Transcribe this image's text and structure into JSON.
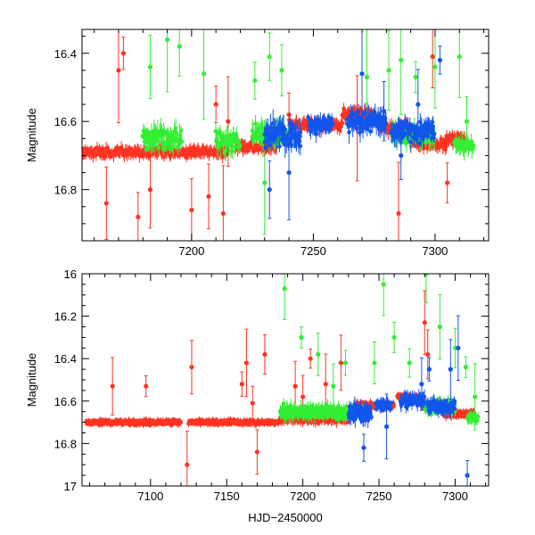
{
  "chart_data": [
    {
      "type": "scatter",
      "panel": "top",
      "xlabel": "",
      "ylabel": "Magnitude",
      "xlim": [
        7155,
        7322
      ],
      "ylim": [
        16.95,
        16.33
      ],
      "xticks": [
        7200,
        7250,
        7300
      ],
      "yticks": [
        16.4,
        16.6,
        16.8
      ],
      "series": [
        {
          "name": "red",
          "color": "#ff3322",
          "segments": [
            [
              7155,
              7215,
              16.69,
              0.018
            ],
            [
              7218,
              7235,
              16.675,
              0.02
            ],
            [
              7240,
              7262,
              16.61,
              0.018
            ],
            [
              7262,
              7275,
              16.575,
              0.02
            ],
            [
              7277,
              7290,
              16.62,
              0.02
            ],
            [
              7290,
              7305,
              16.665,
              0.02
            ],
            [
              7305,
              7312,
              16.65,
              0.02
            ]
          ],
          "outliers": [
            [
              7170,
              16.45
            ],
            [
              7172,
              16.4
            ],
            [
              7165,
              16.84
            ],
            [
              7178,
              16.88
            ],
            [
              7183,
              16.8
            ],
            [
              7200,
              16.86
            ],
            [
              7207,
              16.82
            ],
            [
              7210,
              16.55
            ],
            [
              7213,
              16.87
            ],
            [
              7215,
              16.6
            ],
            [
              7240,
              16.58
            ],
            [
              7268,
              16.62
            ],
            [
              7299,
              16.41
            ],
            [
              7305,
              16.78
            ],
            [
              7285,
              16.87
            ]
          ]
        },
        {
          "name": "green",
          "color": "#33ee33",
          "segments": [
            [
              7180,
              7196,
              16.65,
              0.04
            ],
            [
              7210,
              7220,
              16.66,
              0.04
            ],
            [
              7225,
              7240,
              16.64,
              0.04
            ],
            [
              7282,
              7300,
              16.64,
              0.04
            ],
            [
              7308,
              7316,
              16.67,
              0.03
            ]
          ],
          "outliers": [
            [
              7183,
              16.44
            ],
            [
              7190,
              16.36
            ],
            [
              7195,
              16.38
            ],
            [
              7205,
              16.46
            ],
            [
              7226,
              16.48
            ],
            [
              7230,
              16.78
            ],
            [
              7232,
              16.41
            ],
            [
              7272,
              16.47
            ],
            [
              7281,
              16.45
            ],
            [
              7286,
              16.42
            ],
            [
              7292,
              16.47
            ],
            [
              7300,
              16.44
            ],
            [
              7310,
              16.41
            ],
            [
              7313,
              16.6
            ],
            [
              7237,
              16.45
            ]
          ]
        },
        {
          "name": "blue",
          "color": "#1155ee",
          "segments": [
            [
              7230,
              7245,
              16.64,
              0.05
            ],
            [
              7248,
              7258,
              16.61,
              0.03
            ],
            [
              7264,
              7280,
              16.6,
              0.04
            ],
            [
              7282,
              7300,
              16.63,
              0.04
            ]
          ],
          "outliers": [
            [
              7232,
              16.8
            ],
            [
              7240,
              16.75
            ],
            [
              7270,
              16.46
            ],
            [
              7279,
              16.57
            ],
            [
              7286,
              16.7
            ],
            [
              7293,
              16.55
            ],
            [
              7302,
              16.42
            ]
          ]
        }
      ]
    },
    {
      "type": "scatter",
      "panel": "bottom",
      "xlabel": "HJD−2450000",
      "ylabel": "Magnitude",
      "xlim": [
        7055,
        7322
      ],
      "ylim": [
        17.0,
        16.0
      ],
      "xticks": [
        7100,
        7150,
        7200,
        7250,
        7300
      ],
      "yticks": [
        16.0,
        16.2,
        16.4,
        16.6,
        16.8,
        17.0
      ],
      "ytick_labels": [
        "16",
        "16.2",
        "16.4",
        "16.6",
        "16.8",
        "17"
      ],
      "series": [
        {
          "name": "red",
          "color": "#ff3322",
          "segments": [
            [
              7058,
              7120,
              16.7,
              0.015
            ],
            [
              7125,
              7185,
              16.7,
              0.015
            ],
            [
              7185,
              7230,
              16.685,
              0.025
            ],
            [
              7235,
              7260,
              16.62,
              0.02
            ],
            [
              7262,
              7276,
              16.58,
              0.015
            ],
            [
              7278,
              7292,
              16.62,
              0.02
            ],
            [
              7292,
              7313,
              16.66,
              0.02
            ]
          ],
          "outliers": [
            [
              7075,
              16.53
            ],
            [
              7097,
              16.53
            ],
            [
              7124,
              16.9
            ],
            [
              7127,
              16.44
            ],
            [
              7160,
              16.52
            ],
            [
              7163,
              16.42
            ],
            [
              7167,
              16.61
            ],
            [
              7175,
              16.38
            ],
            [
              7195,
              16.53
            ],
            [
              7205,
              16.4
            ],
            [
              7215,
              16.52
            ],
            [
              7225,
              16.42
            ],
            [
              7280,
              16.23
            ],
            [
              7282,
              16.38
            ],
            [
              7170,
              16.84
            ],
            [
              7200,
              16.58
            ]
          ]
        },
        {
          "name": "green",
          "color": "#33ee33",
          "segments": [
            [
              7185,
              7240,
              16.65,
              0.04
            ],
            [
              7280,
              7300,
              16.63,
              0.04
            ],
            [
              7308,
              7315,
              16.68,
              0.03
            ]
          ],
          "outliers": [
            [
              7188,
              16.07
            ],
            [
              7199,
              16.3
            ],
            [
              7210,
              16.38
            ],
            [
              7220,
              16.53
            ],
            [
              7228,
              16.42
            ],
            [
              7247,
              16.42
            ],
            [
              7253,
              16.05
            ],
            [
              7260,
              16.3
            ],
            [
              7270,
              16.42
            ],
            [
              7281,
              16.0
            ],
            [
              7290,
              16.25
            ],
            [
              7300,
              16.35
            ],
            [
              7307,
              16.44
            ],
            [
              7313,
              16.58
            ]
          ]
        },
        {
          "name": "blue",
          "color": "#1155ee",
          "segments": [
            [
              7230,
              7245,
              16.66,
              0.05
            ],
            [
              7248,
              7258,
              16.62,
              0.03
            ],
            [
              7264,
              7280,
              16.6,
              0.04
            ],
            [
              7282,
              7300,
              16.63,
              0.04
            ]
          ],
          "outliers": [
            [
              7240,
              16.82
            ],
            [
              7255,
              16.72
            ],
            [
              7278,
              16.52
            ],
            [
              7283,
              16.45
            ],
            [
              7297,
              16.45
            ],
            [
              7302,
              16.35
            ],
            [
              7308,
              16.95
            ]
          ]
        }
      ]
    }
  ]
}
